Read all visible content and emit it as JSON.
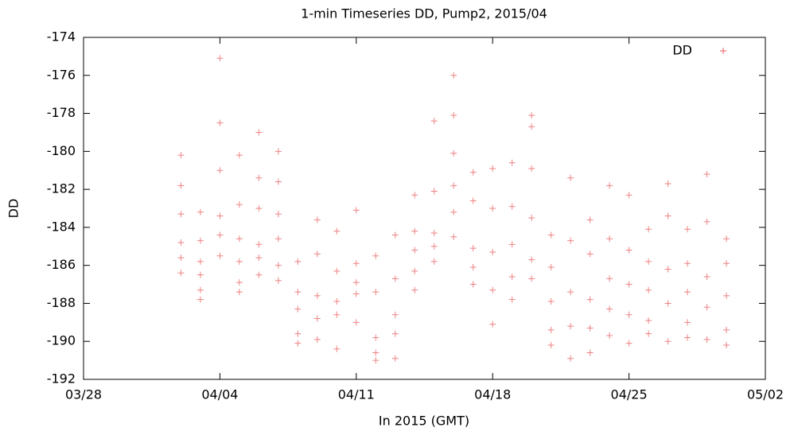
{
  "chart_data": {
    "type": "scatter",
    "title": "1-min Timeseries DD, Pump2, 2015/04",
    "x_label": "In 2015 (GMT)",
    "y_label": "DD",
    "xlim": [
      "2015-03-28",
      "2015-05-02"
    ],
    "xticks": [
      {
        "value": "2015-03-28",
        "label": "03/28"
      },
      {
        "value": "2015-04-04",
        "label": "04/04"
      },
      {
        "value": "2015-04-11",
        "label": "04/11"
      },
      {
        "value": "2015-04-18",
        "label": "04/18"
      },
      {
        "value": "2015-04-25",
        "label": "04/25"
      },
      {
        "value": "2015-05-02",
        "label": "05/02"
      }
    ],
    "ylim": [
      -192,
      -174
    ],
    "yticks": [
      -192,
      -190,
      -188,
      -186,
      -184,
      -182,
      -180,
      -178,
      -176,
      -174
    ],
    "grid": false,
    "legend": "upper right",
    "series": [
      {
        "name": "DD",
        "color": "#e8585a",
        "x": [
          "2015-04-02",
          "2015-04-02",
          "2015-04-02",
          "2015-04-02",
          "2015-04-02",
          "2015-04-02",
          "2015-04-03",
          "2015-04-03",
          "2015-04-03",
          "2015-04-03",
          "2015-04-03",
          "2015-04-03",
          "2015-04-04",
          "2015-04-04",
          "2015-04-04",
          "2015-04-04",
          "2015-04-04",
          "2015-04-04",
          "2015-04-05",
          "2015-04-05",
          "2015-04-05",
          "2015-04-05",
          "2015-04-05",
          "2015-04-05",
          "2015-04-06",
          "2015-04-06",
          "2015-04-06",
          "2015-04-06",
          "2015-04-06",
          "2015-04-06",
          "2015-04-07",
          "2015-04-07",
          "2015-04-07",
          "2015-04-07",
          "2015-04-07",
          "2015-04-07",
          "2015-04-08",
          "2015-04-08",
          "2015-04-08",
          "2015-04-08",
          "2015-04-08",
          "2015-04-09",
          "2015-04-09",
          "2015-04-09",
          "2015-04-09",
          "2015-04-09",
          "2015-04-10",
          "2015-04-10",
          "2015-04-10",
          "2015-04-10",
          "2015-04-10",
          "2015-04-11",
          "2015-04-11",
          "2015-04-11",
          "2015-04-11",
          "2015-04-11",
          "2015-04-12",
          "2015-04-12",
          "2015-04-12",
          "2015-04-12",
          "2015-04-12",
          "2015-04-13",
          "2015-04-13",
          "2015-04-13",
          "2015-04-13",
          "2015-04-13",
          "2015-04-14",
          "2015-04-14",
          "2015-04-14",
          "2015-04-14",
          "2015-04-14",
          "2015-04-15",
          "2015-04-15",
          "2015-04-15",
          "2015-04-15",
          "2015-04-15",
          "2015-04-16",
          "2015-04-16",
          "2015-04-16",
          "2015-04-16",
          "2015-04-16",
          "2015-04-16",
          "2015-04-17",
          "2015-04-17",
          "2015-04-17",
          "2015-04-17",
          "2015-04-17",
          "2015-04-18",
          "2015-04-18",
          "2015-04-18",
          "2015-04-18",
          "2015-04-18",
          "2015-04-19",
          "2015-04-19",
          "2015-04-19",
          "2015-04-19",
          "2015-04-19",
          "2015-04-20",
          "2015-04-20",
          "2015-04-20",
          "2015-04-20",
          "2015-04-20",
          "2015-04-20",
          "2015-04-21",
          "2015-04-21",
          "2015-04-21",
          "2015-04-21",
          "2015-04-21",
          "2015-04-22",
          "2015-04-22",
          "2015-04-22",
          "2015-04-22",
          "2015-04-22",
          "2015-04-23",
          "2015-04-23",
          "2015-04-23",
          "2015-04-23",
          "2015-04-23",
          "2015-04-24",
          "2015-04-24",
          "2015-04-24",
          "2015-04-24",
          "2015-04-24",
          "2015-04-25",
          "2015-04-25",
          "2015-04-25",
          "2015-04-25",
          "2015-04-25",
          "2015-04-26",
          "2015-04-26",
          "2015-04-26",
          "2015-04-26",
          "2015-04-26",
          "2015-04-27",
          "2015-04-27",
          "2015-04-27",
          "2015-04-27",
          "2015-04-27",
          "2015-04-28",
          "2015-04-28",
          "2015-04-28",
          "2015-04-28",
          "2015-04-28",
          "2015-04-29",
          "2015-04-29",
          "2015-04-29",
          "2015-04-29",
          "2015-04-29",
          "2015-04-30",
          "2015-04-30",
          "2015-04-30",
          "2015-04-30",
          "2015-04-30"
        ],
        "values": [
          -180.2,
          -181.8,
          -183.3,
          -184.8,
          -185.6,
          -186.4,
          -183.2,
          -184.7,
          -185.8,
          -186.5,
          -187.3,
          -187.8,
          -175.1,
          -178.5,
          -181.0,
          -183.4,
          -184.4,
          -185.5,
          -180.2,
          -182.8,
          -184.6,
          -185.8,
          -186.9,
          -187.4,
          -179.0,
          -181.4,
          -183.0,
          -184.9,
          -185.6,
          -186.5,
          -180.0,
          -181.6,
          -183.3,
          -184.6,
          -186.0,
          -186.8,
          -185.8,
          -187.4,
          -188.3,
          -189.6,
          -190.1,
          -183.6,
          -185.4,
          -187.6,
          -188.8,
          -189.9,
          -184.2,
          -186.3,
          -187.9,
          -188.6,
          -190.4,
          -183.1,
          -185.9,
          -186.9,
          -187.5,
          -189.0,
          -185.5,
          -187.4,
          -189.8,
          -190.6,
          -191.0,
          -184.4,
          -186.7,
          -188.6,
          -189.6,
          -190.9,
          -182.3,
          -184.2,
          -185.2,
          -186.3,
          -187.3,
          -178.4,
          -182.1,
          -184.3,
          -185.0,
          -185.8,
          -176.0,
          -178.1,
          -180.1,
          -181.8,
          -183.2,
          -184.5,
          -181.1,
          -182.6,
          -185.1,
          -186.1,
          -187.0,
          -180.9,
          -183.0,
          -185.3,
          -187.3,
          -189.1,
          -180.6,
          -182.9,
          -184.9,
          -186.6,
          -187.8,
          -178.1,
          -178.7,
          -180.9,
          -183.5,
          -185.7,
          -186.7,
          -184.4,
          -186.1,
          -187.9,
          -189.4,
          -190.2,
          -181.4,
          -184.7,
          -187.4,
          -189.2,
          -190.9,
          -183.6,
          -185.4,
          -187.8,
          -189.3,
          -190.6,
          -181.8,
          -184.6,
          -186.7,
          -188.3,
          -189.7,
          -182.3,
          -185.2,
          -187.0,
          -188.6,
          -190.1,
          -184.1,
          -185.8,
          -187.3,
          -188.9,
          -189.6,
          -181.7,
          -183.4,
          -186.2,
          -188.0,
          -190.0,
          -184.1,
          -185.9,
          -187.4,
          -189.0,
          -189.8,
          -181.2,
          -183.7,
          -186.6,
          -188.2,
          -189.9,
          -184.6,
          -185.9,
          -187.6,
          -189.4,
          -190.2
        ]
      }
    ]
  }
}
